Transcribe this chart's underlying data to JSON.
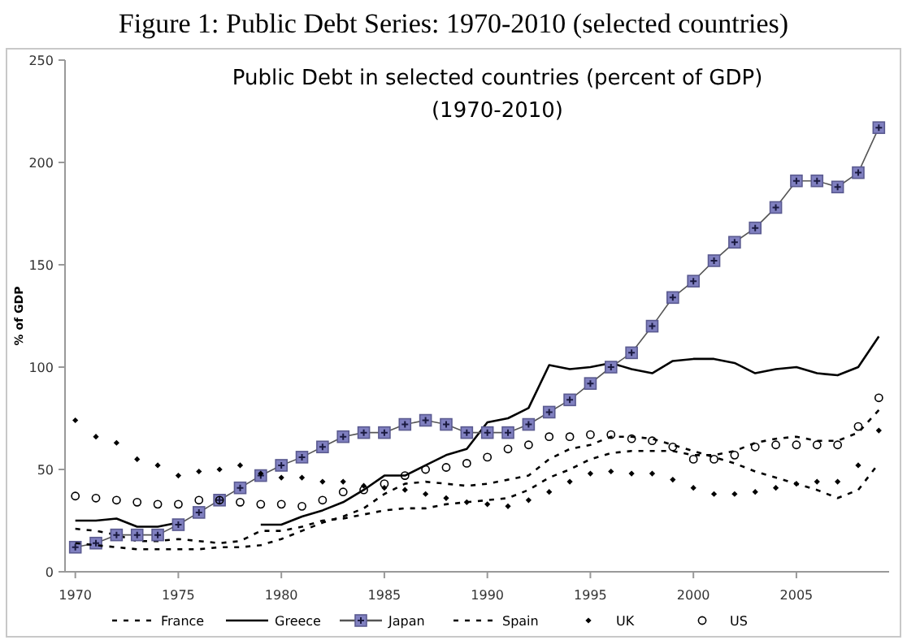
{
  "chart_data": {
    "type": "line",
    "title": "Figure 1: Public Debt Series: 1970-2010 (selected countries)",
    "subtitle": "Public Debt in selected countries (percent of GDP) (1970-2010)",
    "ylabel": "% of GDP",
    "x": [
      1970,
      1971,
      1972,
      1973,
      1974,
      1975,
      1976,
      1977,
      1978,
      1979,
      1980,
      1981,
      1982,
      1983,
      1984,
      1985,
      1986,
      1987,
      1988,
      1989,
      1990,
      1991,
      1992,
      1993,
      1994,
      1995,
      1996,
      1997,
      1998,
      1999,
      2000,
      2001,
      2002,
      2003,
      2004,
      2005,
      2006,
      2007,
      2008,
      2009
    ],
    "xlim": [
      1969.5,
      2009.5
    ],
    "xticks": [
      1970,
      1975,
      1980,
      1985,
      1990,
      1995,
      2000,
      2005
    ],
    "ylim": [
      0,
      250
    ],
    "yticks": [
      0,
      50,
      100,
      150,
      200,
      250
    ],
    "grid": false,
    "legend": "bottom",
    "series": [
      {
        "name": "France",
        "color": "#000000",
        "line_style": "dashed",
        "marker": "none",
        "values": [
          21,
          20,
          18,
          15,
          15,
          16,
          15,
          14,
          15,
          20,
          20,
          22,
          25,
          26,
          28,
          30,
          31,
          31,
          33,
          34,
          35,
          36,
          40,
          46,
          50,
          55,
          58,
          59,
          59,
          59,
          57,
          57,
          59,
          63,
          65,
          66,
          64,
          64,
          68,
          79
        ]
      },
      {
        "name": "Greece",
        "color": "#000000",
        "line_style": "solid",
        "marker": "none",
        "values": [
          25,
          25,
          26,
          22,
          22,
          24,
          null,
          null,
          null,
          23,
          23,
          27,
          30,
          34,
          40,
          47,
          47,
          52,
          57,
          60,
          73,
          75,
          80,
          101,
          99,
          100,
          102,
          99,
          97,
          103,
          104,
          104,
          102,
          97,
          99,
          100,
          97,
          96,
          100,
          115
        ]
      },
      {
        "name": "Japan",
        "color": "#8080c0",
        "line_style": "solid",
        "marker": "square",
        "values": [
          12,
          14,
          18,
          18,
          18,
          23,
          29,
          35,
          41,
          47,
          52,
          56,
          61,
          66,
          68,
          68,
          72,
          74,
          72,
          68,
          68,
          68,
          72,
          78,
          84,
          92,
          100,
          107,
          120,
          134,
          142,
          152,
          161,
          168,
          178,
          191,
          191,
          188,
          195,
          217
        ]
      },
      {
        "name": "Spain",
        "color": "#000000",
        "line_style": "dashed",
        "marker": "none",
        "values": [
          14,
          13,
          12,
          11,
          11,
          11,
          11,
          12,
          12,
          13,
          16,
          20,
          24,
          27,
          31,
          38,
          43,
          44,
          43,
          42,
          43,
          45,
          47,
          55,
          60,
          62,
          66,
          66,
          65,
          62,
          59,
          56,
          53,
          49,
          46,
          43,
          40,
          36,
          40,
          53
        ]
      },
      {
        "name": "UK",
        "color": "#000000",
        "type": "scatter",
        "marker": "diamond",
        "values": [
          74,
          66,
          63,
          55,
          52,
          47,
          49,
          50,
          52,
          48,
          46,
          46,
          44,
          44,
          42,
          41,
          40,
          38,
          36,
          34,
          33,
          32,
          35,
          39,
          44,
          48,
          49,
          48,
          48,
          45,
          41,
          38,
          38,
          39,
          41,
          43,
          44,
          44,
          52,
          69
        ]
      },
      {
        "name": "US",
        "color": "#000000",
        "type": "scatter",
        "marker": "circle",
        "values": [
          37,
          36,
          35,
          34,
          33,
          33,
          35,
          35,
          34,
          33,
          33,
          32,
          35,
          39,
          40,
          43,
          47,
          50,
          51,
          53,
          56,
          60,
          62,
          66,
          66,
          67,
          67,
          65,
          64,
          61,
          55,
          55,
          57,
          61,
          62,
          62,
          62,
          62,
          71,
          85
        ]
      }
    ]
  }
}
